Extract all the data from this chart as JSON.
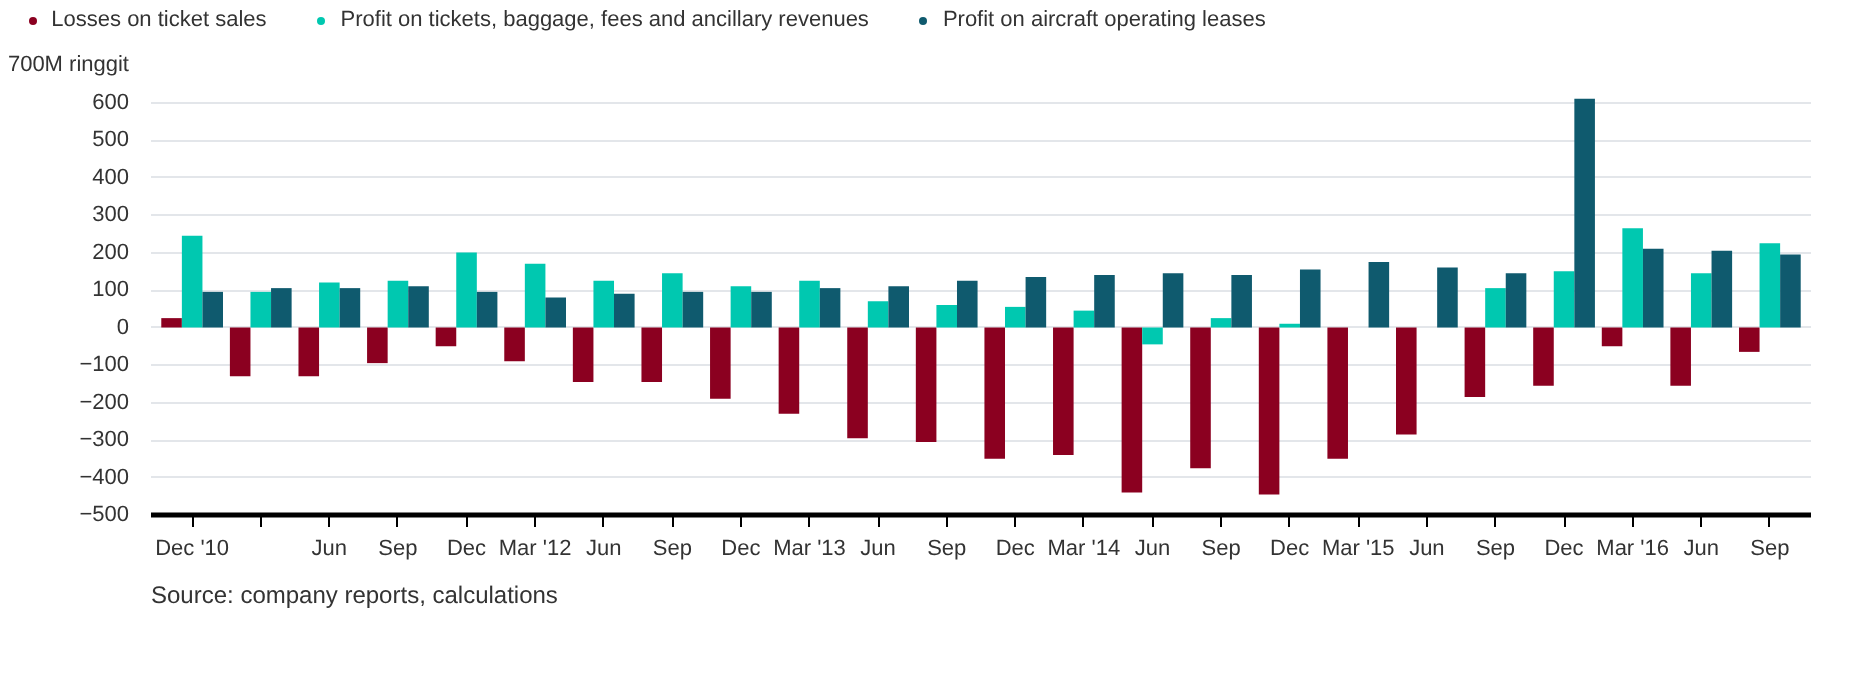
{
  "chart_data": {
    "type": "bar",
    "categories": [
      "Dec '10",
      null,
      "Jun",
      "Sep",
      "Dec",
      "Mar '12",
      "Jun",
      "Sep",
      "Dec",
      "Mar '13",
      "Jun",
      "Sep",
      "Dec",
      "Mar '14",
      "Jun",
      "Sep",
      "Dec",
      "Mar '15",
      "Jun",
      "Sep",
      "Dec",
      "Mar '16",
      "Jun",
      "Sep"
    ],
    "series": [
      {
        "name": "Losses on ticket sales",
        "color": "#8b0020",
        "values": [
          25,
          -130,
          -130,
          -95,
          -50,
          -90,
          -145,
          -145,
          -190,
          -230,
          -295,
          -305,
          -350,
          -340,
          -440,
          -375,
          -445,
          -350,
          -285,
          -185,
          -155,
          -50,
          -155,
          -65
        ]
      },
      {
        "name": "Profit on tickets, baggage, fees and ancillary revenues",
        "color": "#00c8b0",
        "values": [
          245,
          95,
          120,
          125,
          200,
          170,
          125,
          145,
          110,
          125,
          70,
          60,
          55,
          45,
          -45,
          25,
          10,
          null,
          null,
          105,
          150,
          265,
          145,
          225
        ]
      },
      {
        "name": "Profit on aircraft operating leases",
        "color": "#0f5a6e",
        "values": [
          95,
          105,
          105,
          110,
          95,
          80,
          90,
          95,
          95,
          105,
          110,
          125,
          135,
          140,
          145,
          140,
          155,
          175,
          160,
          145,
          610,
          210,
          205,
          195
        ]
      }
    ],
    "ylim": [
      -500,
      700
    ],
    "yticks": [
      -500,
      -400,
      -300,
      -200,
      -100,
      0,
      100,
      200,
      300,
      400,
      500,
      600,
      {
        "value": 700,
        "label": "700M ringgit"
      }
    ],
    "grid": "y",
    "legend": "top left",
    "annotations": [
      "Source: company reports, calculations"
    ]
  }
}
